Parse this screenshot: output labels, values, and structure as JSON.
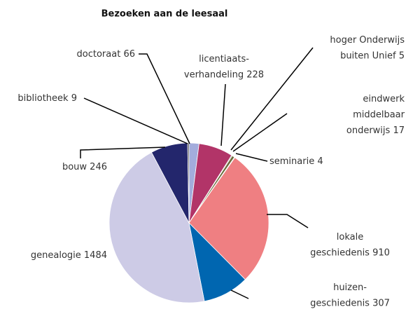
{
  "chart_data": {
    "type": "pie",
    "title": "Bezoeken aan de leesaal",
    "categories": [
      [
        "doctoraat"
      ],
      [
        "licentiaats-",
        "verhandeling"
      ],
      [
        "hoger Onderwijs",
        "buiten Unief"
      ],
      [
        "eindwerk",
        "middelbaar",
        "onderwijs"
      ],
      [
        "seminarie"
      ],
      [
        "lokale",
        "geschiedenis"
      ],
      [
        "huizen-",
        "geschiedenis"
      ],
      [
        "genealogie"
      ],
      [
        "bouw"
      ],
      [
        "bibliotheek"
      ]
    ],
    "values": [
      66,
      228,
      5,
      17,
      4,
      910,
      307,
      1484,
      246,
      9
    ],
    "colors": [
      "#a3acdc",
      "#b23468",
      "#5a5a2a",
      "#6b6b3a",
      "#8a8a5a",
      "#ef7f82",
      "#0066b0",
      "#cdcbe6",
      "#23266c",
      "#3a3a3a"
    ]
  }
}
